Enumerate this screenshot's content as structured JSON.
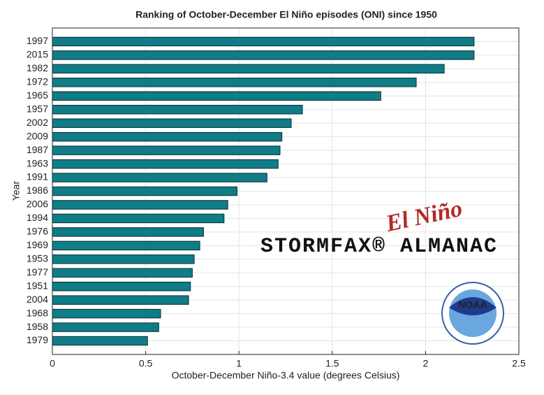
{
  "chart_data": {
    "type": "barh",
    "title": "Ranking of October-December El Niño episodes (ONI) since 1950",
    "x_label": "October-December Niño-3.4 value (degrees Celsius)",
    "y_label": "Year",
    "categories": [
      "1997",
      "2015",
      "1982",
      "1972",
      "1965",
      "1957",
      "2002",
      "2009",
      "1987",
      "1963",
      "1991",
      "1986",
      "2006",
      "1994",
      "1976",
      "1969",
      "1953",
      "1977",
      "1951",
      "2004",
      "1968",
      "1958",
      "1979"
    ],
    "values": [
      2.26,
      2.26,
      2.1,
      1.95,
      1.76,
      1.34,
      1.28,
      1.23,
      1.22,
      1.21,
      1.15,
      0.99,
      0.94,
      0.92,
      0.81,
      0.79,
      0.76,
      0.75,
      0.74,
      0.73,
      0.58,
      0.57,
      0.51
    ],
    "color": "#0f7c86",
    "xlim": [
      0,
      2.5
    ],
    "xticks": [
      0,
      0.5,
      1,
      1.5,
      2,
      2.5
    ],
    "grid": true,
    "annotations": [
      "El Niño",
      "STORMFAX® ALMANAC",
      "NOAA"
    ]
  }
}
